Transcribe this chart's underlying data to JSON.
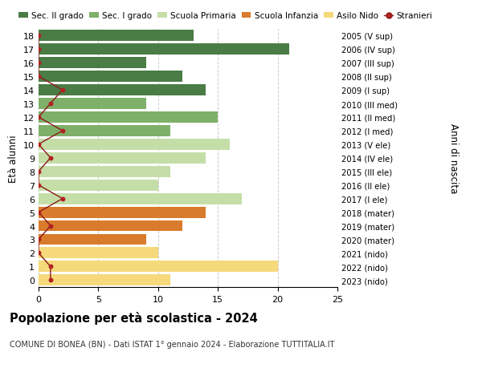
{
  "ages": [
    18,
    17,
    16,
    15,
    14,
    13,
    12,
    11,
    10,
    9,
    8,
    7,
    6,
    5,
    4,
    3,
    2,
    1,
    0
  ],
  "right_labels": [
    "2005 (V sup)",
    "2006 (IV sup)",
    "2007 (III sup)",
    "2008 (II sup)",
    "2009 (I sup)",
    "2010 (III med)",
    "2011 (II med)",
    "2012 (I med)",
    "2013 (V ele)",
    "2014 (IV ele)",
    "2015 (III ele)",
    "2016 (II ele)",
    "2017 (I ele)",
    "2018 (mater)",
    "2019 (mater)",
    "2020 (mater)",
    "2021 (nido)",
    "2022 (nido)",
    "2023 (nido)"
  ],
  "bar_values": [
    13,
    21,
    9,
    12,
    14,
    9,
    15,
    11,
    16,
    14,
    11,
    10,
    17,
    14,
    12,
    9,
    10,
    20,
    11
  ],
  "bar_colors": [
    "#4a7c45",
    "#4a7c45",
    "#4a7c45",
    "#4a7c45",
    "#4a7c45",
    "#7fb069",
    "#7fb069",
    "#7fb069",
    "#c5dea8",
    "#c5dea8",
    "#c5dea8",
    "#c5dea8",
    "#c5dea8",
    "#d97b2c",
    "#d97b2c",
    "#d97b2c",
    "#f5d97a",
    "#f5d97a",
    "#f5d97a"
  ],
  "stranieri_values": [
    0,
    0,
    0,
    0,
    2,
    1,
    0,
    2,
    0,
    1,
    0,
    0,
    2,
    0,
    1,
    0,
    0,
    1,
    1
  ],
  "title_bold": "Popolazione per età scolastica - 2024",
  "subtitle": "COMUNE DI BONEA (BN) - Dati ISTAT 1° gennaio 2024 - Elaborazione TUTTITALIA.IT",
  "ylabel": "Età alunni",
  "right_ylabel": "Anni di nascita",
  "xlim": [
    0,
    25
  ],
  "xticks": [
    0,
    5,
    10,
    15,
    20,
    25
  ],
  "legend_labels": [
    "Sec. II grado",
    "Sec. I grado",
    "Scuola Primaria",
    "Scuola Infanzia",
    "Asilo Nido",
    "Stranieri"
  ],
  "legend_colors": [
    "#4a7c45",
    "#7fb069",
    "#c5dea8",
    "#d97b2c",
    "#f5d97a",
    "#b22222"
  ],
  "bg_color": "#ffffff",
  "grid_color": "#cccccc",
  "stranieri_line_color": "#8b1a1a",
  "stranieri_dot_color": "#b22222"
}
